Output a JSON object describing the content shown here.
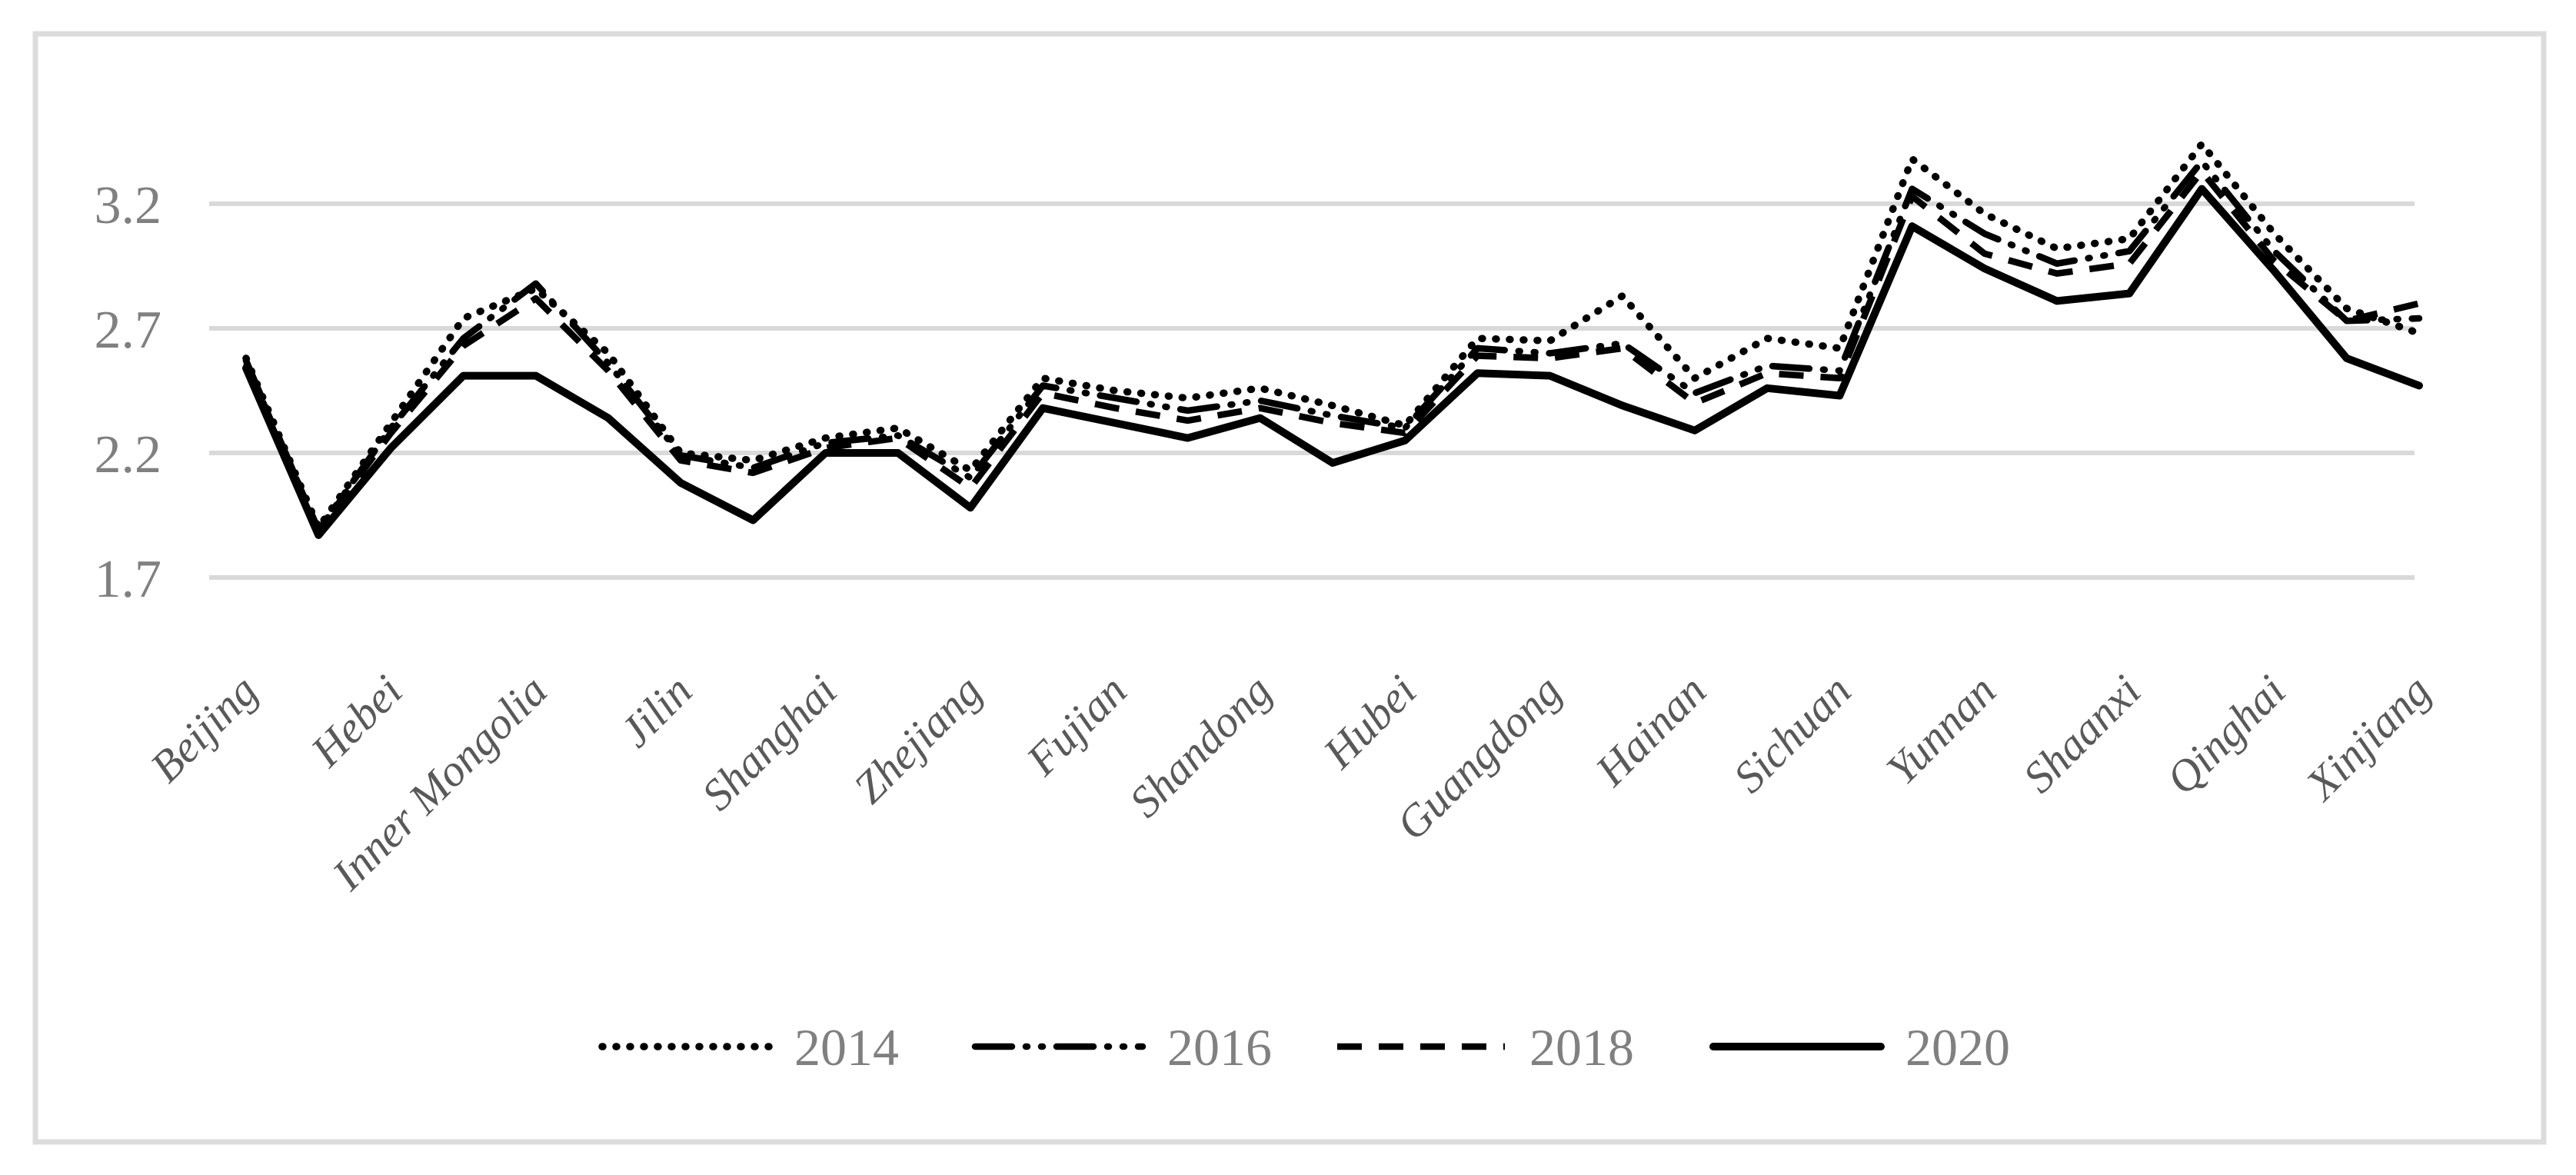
{
  "figure": {
    "background": "#ffffff",
    "border_color": "#dcdcdc",
    "line_color": "#000000"
  },
  "chart_data": {
    "type": "line",
    "title": "",
    "xlabel": "",
    "ylabel": "",
    "grid": {
      "on": true,
      "color": "#d9d9d9"
    },
    "x_axis": {
      "tick_labels": [
        "Beijing",
        "Hebei",
        "Inner Mongolia",
        "Jilin",
        "Shanghai",
        "Zhejiang",
        "Fujian",
        "Shandong",
        "Hubei",
        "Guangdong",
        "Hainan",
        "Sichuan",
        "Yunnan",
        "Shaanxi",
        "Qinghai",
        "Xinjiang"
      ],
      "tick_indices": [
        0,
        2,
        4,
        6,
        8,
        10,
        12,
        14,
        16,
        18,
        20,
        22,
        24,
        26,
        28,
        30
      ],
      "label_color": "#595959",
      "label_style": "italic",
      "rotation_deg": -45
    },
    "y_axis": {
      "ticks": [
        "1.7",
        "2.2",
        "2.7",
        "3.2"
      ],
      "tick_values": [
        1.7,
        2.2,
        2.7,
        3.2
      ],
      "ylim": [
        1.45,
        3.6
      ],
      "label_color": "#808080"
    },
    "n_points": 31,
    "series": [
      {
        "name": "2014",
        "style": "dotted",
        "color": "#000000",
        "values": [
          2.58,
          1.9,
          2.32,
          2.74,
          2.86,
          2.6,
          2.2,
          2.17,
          2.26,
          2.3,
          2.13,
          2.5,
          2.45,
          2.42,
          2.46,
          2.39,
          2.31,
          2.66,
          2.65,
          2.83,
          2.5,
          2.66,
          2.62,
          3.38,
          3.16,
          3.02,
          3.06,
          3.44,
          3.08,
          2.78,
          2.68
        ]
      },
      {
        "name": "2016",
        "style": "dash-dot-dot",
        "color": "#000000",
        "values": [
          2.57,
          1.89,
          2.3,
          2.66,
          2.88,
          2.56,
          2.19,
          2.14,
          2.24,
          2.27,
          2.1,
          2.47,
          2.42,
          2.37,
          2.41,
          2.35,
          2.3,
          2.62,
          2.6,
          2.64,
          2.44,
          2.55,
          2.53,
          3.26,
          3.08,
          2.96,
          3.01,
          3.37,
          3.01,
          2.73,
          2.74
        ]
      },
      {
        "name": "2018",
        "style": "dashed",
        "color": "#000000",
        "values": [
          2.56,
          1.89,
          2.28,
          2.63,
          2.82,
          2.53,
          2.17,
          2.12,
          2.22,
          2.26,
          2.06,
          2.44,
          2.38,
          2.33,
          2.38,
          2.32,
          2.28,
          2.59,
          2.58,
          2.62,
          2.4,
          2.52,
          2.5,
          3.23,
          3.0,
          2.92,
          2.96,
          3.33,
          2.97,
          2.73,
          2.8
        ]
      },
      {
        "name": "2020",
        "style": "solid",
        "color": "#000000",
        "values": [
          2.54,
          1.87,
          2.22,
          2.51,
          2.51,
          2.34,
          2.08,
          1.93,
          2.2,
          2.2,
          1.98,
          2.38,
          2.32,
          2.26,
          2.34,
          2.16,
          2.25,
          2.52,
          2.51,
          2.39,
          2.29,
          2.46,
          2.43,
          3.11,
          2.94,
          2.81,
          2.84,
          3.26,
          2.93,
          2.58,
          2.47
        ]
      }
    ],
    "legend": {
      "position": "bottom",
      "labels": [
        "2014",
        "2016",
        "2018",
        "2020"
      ],
      "text_color": "#808080"
    }
  }
}
